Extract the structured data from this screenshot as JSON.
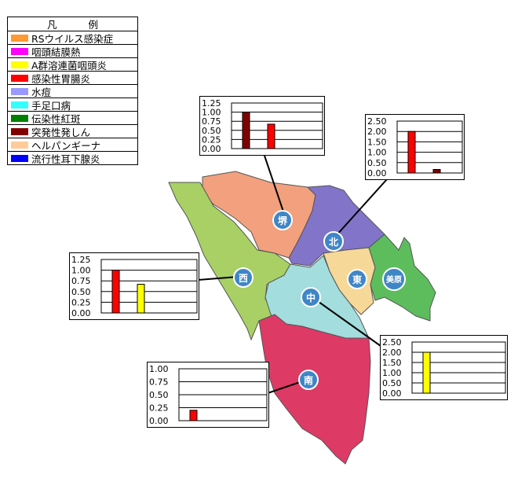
{
  "legend": {
    "title_left": "凡",
    "title_right": "例",
    "items": [
      {
        "label": "RSウイルス感染症",
        "color": "#ff9933"
      },
      {
        "label": "咽頭結膜熱",
        "color": "#ff00ff"
      },
      {
        "label": "A群溶連菌咽頭炎",
        "color": "#ffff00"
      },
      {
        "label": "感染性胃腸炎",
        "color": "#ff0000"
      },
      {
        "label": "水痘",
        "color": "#9999ff"
      },
      {
        "label": "手足口病",
        "color": "#33ffff"
      },
      {
        "label": "伝染性紅斑",
        "color": "#008000"
      },
      {
        "label": "突発性発しん",
        "color": "#800000"
      },
      {
        "label": "ヘルパンギーナ",
        "color": "#ffcc99"
      },
      {
        "label": "流行性耳下腺炎",
        "color": "#0000ff"
      }
    ]
  },
  "districts": [
    {
      "name": "堺",
      "color": "#f2a07e"
    },
    {
      "name": "北",
      "color": "#8274c8"
    },
    {
      "name": "西",
      "color": "#a8d065"
    },
    {
      "name": "中",
      "color": "#a3dddd"
    },
    {
      "name": "東",
      "color": "#f6d898"
    },
    {
      "name": "美原",
      "color": "#5dbd5d"
    },
    {
      "name": "南",
      "color": "#dd3a66"
    }
  ],
  "chart_data": [
    {
      "type": "bar",
      "district": "堺",
      "ylim": [
        0,
        1.25
      ],
      "yticks": [
        "1.25",
        "1.00",
        "0.75",
        "0.50",
        "0.25",
        "0.00"
      ],
      "bars": [
        {
          "series": "突発性発しん",
          "value": 1.0,
          "color": "#800000"
        },
        {
          "series": "感染性胃腸炎",
          "value": 0.67,
          "color": "#ff0000"
        }
      ]
    },
    {
      "type": "bar",
      "district": "北",
      "ylim": [
        0,
        2.5
      ],
      "yticks": [
        "2.50",
        "2.00",
        "1.50",
        "1.00",
        "0.50",
        "0.00"
      ],
      "bars": [
        {
          "series": "感染性胃腸炎",
          "value": 2.0,
          "color": "#ff0000"
        },
        {
          "series": "突発性発しん",
          "value": 0.17,
          "color": "#800000"
        }
      ]
    },
    {
      "type": "bar",
      "district": "西",
      "ylim": [
        0,
        1.25
      ],
      "yticks": [
        "1.25",
        "1.00",
        "0.75",
        "0.50",
        "0.25",
        "0.00"
      ],
      "bars": [
        {
          "series": "感染性胃腸炎",
          "value": 1.0,
          "color": "#ff0000"
        },
        {
          "series": "A群溶連菌咽頭炎",
          "value": 0.67,
          "color": "#ffff00"
        }
      ]
    },
    {
      "type": "bar",
      "district": "中",
      "ylim": [
        0,
        2.5
      ],
      "yticks": [
        "2.50",
        "2.00",
        "1.50",
        "1.00",
        "0.50",
        "0.00"
      ],
      "bars": [
        {
          "series": "A群溶連菌咽頭炎",
          "value": 2.0,
          "color": "#ffff00"
        }
      ]
    },
    {
      "type": "bar",
      "district": "南",
      "ylim": [
        0,
        1.0
      ],
      "yticks": [
        "1.00",
        "0.75",
        "0.50",
        "0.25",
        "0.00"
      ],
      "bars": [
        {
          "series": "感染性胃腸炎",
          "value": 0.2,
          "color": "#ff0000"
        }
      ]
    }
  ]
}
